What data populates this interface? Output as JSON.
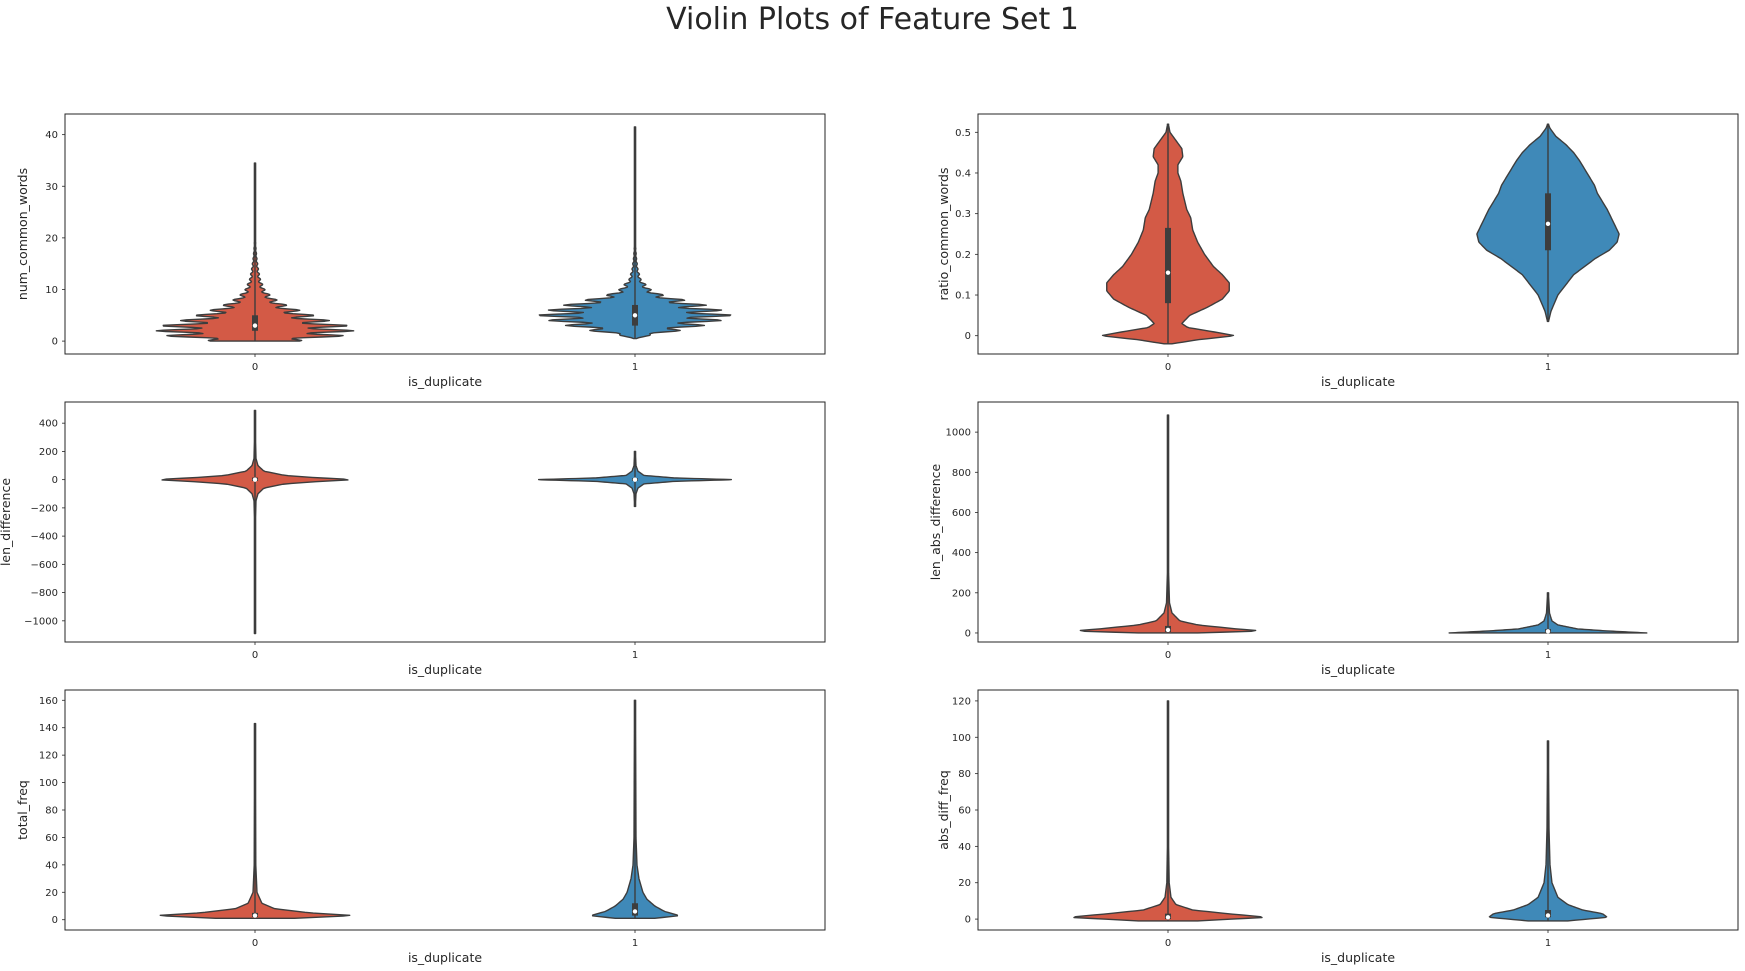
{
  "title": "Violin Plots of Feature Set 1",
  "colors": {
    "class0": "#d35a46",
    "class1": "#3f89b8",
    "edge": "#3d3d3d",
    "frame": "#262626"
  },
  "chart_data": [
    {
      "type": "violin",
      "xlabel": "is_duplicate",
      "ylabel": "num_common_words",
      "categories": [
        "0",
        "1"
      ],
      "ylim": [
        -2.5,
        44
      ],
      "yticks": [
        0,
        10,
        20,
        30,
        40
      ],
      "grid": false,
      "shape": "spiky",
      "series": [
        {
          "category": "0",
          "min": 0,
          "max": 34.5,
          "q1": 2,
          "median": 3,
          "q3": 5,
          "profile": [
            [
              -0.2,
              0.05
            ],
            [
              0,
              0.45
            ],
            [
              1,
              0.9
            ],
            [
              2,
              1.0
            ],
            [
              3,
              0.95
            ],
            [
              4,
              0.75
            ],
            [
              5,
              0.6
            ],
            [
              6,
              0.45
            ],
            [
              7,
              0.32
            ],
            [
              8,
              0.22
            ],
            [
              9,
              0.15
            ],
            [
              10,
              0.1
            ],
            [
              12,
              0.055
            ],
            [
              14,
              0.035
            ],
            [
              16,
              0.02
            ],
            [
              18,
              0.01
            ],
            [
              20,
              0.004
            ],
            [
              34.5,
              0.002
            ]
          ]
        },
        {
          "category": "1",
          "min": 0.5,
          "max": 41.5,
          "q1": 3,
          "median": 5,
          "q3": 7,
          "profile": [
            [
              0.5,
              0.03
            ],
            [
              1,
              0.12
            ],
            [
              2,
              0.45
            ],
            [
              3,
              0.7
            ],
            [
              4,
              0.88
            ],
            [
              5,
              1.0
            ],
            [
              6,
              0.88
            ],
            [
              7,
              0.72
            ],
            [
              8,
              0.5
            ],
            [
              9,
              0.28
            ],
            [
              10,
              0.16
            ],
            [
              12,
              0.06
            ],
            [
              14,
              0.03
            ],
            [
              16,
              0.016
            ],
            [
              18,
              0.008
            ],
            [
              20,
              0.004
            ],
            [
              41.5,
              0.002
            ]
          ]
        }
      ]
    },
    {
      "type": "violin",
      "xlabel": "is_duplicate",
      "ylabel": "ratio_common_words",
      "categories": [
        "0",
        "1"
      ],
      "ylim": [
        -0.045,
        0.545
      ],
      "yticks": [
        0.0,
        0.1,
        0.2,
        0.3,
        0.4,
        0.5
      ],
      "grid": false,
      "shape": "smooth",
      "series": [
        {
          "category": "0",
          "min": -0.02,
          "max": 0.52,
          "q1": 0.08,
          "median": 0.155,
          "q3": 0.265,
          "profile": [
            [
              -0.02,
              0.04
            ],
            [
              -0.01,
              0.3
            ],
            [
              0.0,
              0.68
            ],
            [
              0.01,
              0.45
            ],
            [
              0.02,
              0.2
            ],
            [
              0.03,
              0.14
            ],
            [
              0.05,
              0.22
            ],
            [
              0.07,
              0.4
            ],
            [
              0.09,
              0.55
            ],
            [
              0.11,
              0.62
            ],
            [
              0.13,
              0.62
            ],
            [
              0.15,
              0.55
            ],
            [
              0.17,
              0.46
            ],
            [
              0.2,
              0.37
            ],
            [
              0.23,
              0.3
            ],
            [
              0.26,
              0.25
            ],
            [
              0.29,
              0.23
            ],
            [
              0.31,
              0.19
            ],
            [
              0.33,
              0.17
            ],
            [
              0.35,
              0.15
            ],
            [
              0.38,
              0.13
            ],
            [
              0.4,
              0.1
            ],
            [
              0.42,
              0.1
            ],
            [
              0.44,
              0.15
            ],
            [
              0.46,
              0.14
            ],
            [
              0.48,
              0.08
            ],
            [
              0.5,
              0.02
            ],
            [
              0.52,
              0.004
            ]
          ]
        },
        {
          "category": "1",
          "min": 0.035,
          "max": 0.52,
          "q1": 0.21,
          "median": 0.275,
          "q3": 0.35,
          "profile": [
            [
              0.035,
              0.005
            ],
            [
              0.06,
              0.03
            ],
            [
              0.1,
              0.1
            ],
            [
              0.15,
              0.26
            ],
            [
              0.19,
              0.48
            ],
            [
              0.21,
              0.62
            ],
            [
              0.23,
              0.7
            ],
            [
              0.25,
              0.72
            ],
            [
              0.27,
              0.68
            ],
            [
              0.29,
              0.64
            ],
            [
              0.31,
              0.6
            ],
            [
              0.33,
              0.55
            ],
            [
              0.35,
              0.5
            ],
            [
              0.37,
              0.47
            ],
            [
              0.39,
              0.42
            ],
            [
              0.41,
              0.37
            ],
            [
              0.43,
              0.32
            ],
            [
              0.45,
              0.26
            ],
            [
              0.47,
              0.18
            ],
            [
              0.49,
              0.08
            ],
            [
              0.51,
              0.02
            ],
            [
              0.52,
              0.004
            ]
          ]
        }
      ]
    },
    {
      "type": "violin",
      "xlabel": "is_duplicate",
      "ylabel": "len_difference",
      "categories": [
        "0",
        "1"
      ],
      "ylim": [
        -1150,
        550
      ],
      "yticks": [
        400,
        200,
        0,
        -200,
        -400,
        -600,
        -800,
        -1000
      ],
      "ytick_labels": [
        "400",
        "200",
        "0",
        "−200",
        "−400",
        "−600",
        "−800",
        "−1000"
      ],
      "grid": false,
      "shape": "smooth",
      "series": [
        {
          "category": "0",
          "min": -1090,
          "max": 490,
          "q1": -10,
          "median": 0,
          "q3": 15,
          "profile": [
            [
              -1090,
              0.004
            ],
            [
              -300,
              0.005
            ],
            [
              -150,
              0.01
            ],
            [
              -100,
              0.03
            ],
            [
              -60,
              0.09
            ],
            [
              -30,
              0.3
            ],
            [
              -15,
              0.6
            ],
            [
              0,
              1.0
            ],
            [
              15,
              0.6
            ],
            [
              30,
              0.3
            ],
            [
              60,
              0.09
            ],
            [
              100,
              0.03
            ],
            [
              150,
              0.01
            ],
            [
              300,
              0.005
            ],
            [
              490,
              0.004
            ]
          ]
        },
        {
          "category": "1",
          "min": -190,
          "max": 200,
          "q1": -8,
          "median": 0,
          "q3": 10,
          "profile": [
            [
              -190,
              0.004
            ],
            [
              -100,
              0.01
            ],
            [
              -60,
              0.03
            ],
            [
              -30,
              0.09
            ],
            [
              -12,
              0.4
            ],
            [
              0,
              1.0
            ],
            [
              12,
              0.4
            ],
            [
              30,
              0.09
            ],
            [
              60,
              0.03
            ],
            [
              100,
              0.01
            ],
            [
              200,
              0.004
            ]
          ]
        }
      ]
    },
    {
      "type": "violin",
      "xlabel": "is_duplicate",
      "ylabel": "len_abs_difference",
      "categories": [
        "0",
        "1"
      ],
      "ylim": [
        -45,
        1150
      ],
      "yticks": [
        0,
        200,
        400,
        600,
        800,
        1000
      ],
      "grid": false,
      "shape": "smooth",
      "series": [
        {
          "category": "0",
          "min": 0,
          "max": 1085,
          "q1": 5,
          "median": 15,
          "q3": 35,
          "profile": [
            [
              0,
              0.3
            ],
            [
              10,
              0.95
            ],
            [
              20,
              0.7
            ],
            [
              40,
              0.3
            ],
            [
              60,
              0.12
            ],
            [
              100,
              0.04
            ],
            [
              150,
              0.015
            ],
            [
              300,
              0.006
            ],
            [
              1085,
              0.004
            ]
          ]
        },
        {
          "category": "1",
          "min": 0,
          "max": 200,
          "q1": 3,
          "median": 8,
          "q3": 20,
          "profile": [
            [
              0,
              1.0
            ],
            [
              10,
              0.6
            ],
            [
              20,
              0.3
            ],
            [
              40,
              0.1
            ],
            [
              60,
              0.04
            ],
            [
              100,
              0.015
            ],
            [
              200,
              0.004
            ]
          ]
        }
      ]
    },
    {
      "type": "violin",
      "xlabel": "is_duplicate",
      "ylabel": "total_freq",
      "categories": [
        "0",
        "1"
      ],
      "ylim": [
        -7.5,
        167.5
      ],
      "yticks": [
        0,
        20,
        40,
        60,
        80,
        100,
        120,
        140,
        160
      ],
      "grid": false,
      "shape": "smooth",
      "series": [
        {
          "category": "0",
          "min": 1,
          "max": 143,
          "q1": 2,
          "median": 3,
          "q3": 5,
          "profile": [
            [
              1,
              0.4
            ],
            [
              3,
              1.0
            ],
            [
              5,
              0.55
            ],
            [
              8,
              0.2
            ],
            [
              12,
              0.07
            ],
            [
              20,
              0.02
            ],
            [
              40,
              0.008
            ],
            [
              143,
              0.004
            ]
          ]
        },
        {
          "category": "1",
          "min": 1,
          "max": 160,
          "q1": 3,
          "median": 6,
          "q3": 12,
          "profile": [
            [
              1,
              0.2
            ],
            [
              3,
              0.45
            ],
            [
              6,
              0.3
            ],
            [
              10,
              0.2
            ],
            [
              15,
              0.12
            ],
            [
              20,
              0.08
            ],
            [
              30,
              0.04
            ],
            [
              40,
              0.02
            ],
            [
              60,
              0.01
            ],
            [
              160,
              0.005
            ]
          ]
        }
      ]
    },
    {
      "type": "violin",
      "xlabel": "is_duplicate",
      "ylabel": "abs_diff_freq",
      "categories": [
        "0",
        "1"
      ],
      "ylim": [
        -6,
        126
      ],
      "yticks": [
        0,
        20,
        40,
        60,
        80,
        100,
        120
      ],
      "grid": false,
      "shape": "smooth",
      "series": [
        {
          "category": "0",
          "min": -1,
          "max": 120,
          "q1": 0,
          "median": 1,
          "q3": 3,
          "profile": [
            [
              -1,
              0.3
            ],
            [
              1,
              1.0
            ],
            [
              3,
              0.6
            ],
            [
              5,
              0.25
            ],
            [
              8,
              0.08
            ],
            [
              12,
              0.03
            ],
            [
              20,
              0.012
            ],
            [
              40,
              0.006
            ],
            [
              120,
              0.004
            ]
          ]
        },
        {
          "category": "1",
          "min": -1,
          "max": 98,
          "q1": 1,
          "median": 2,
          "q3": 5,
          "profile": [
            [
              -1,
              0.2
            ],
            [
              1,
              0.6
            ],
            [
              3,
              0.55
            ],
            [
              5,
              0.35
            ],
            [
              8,
              0.2
            ],
            [
              12,
              0.1
            ],
            [
              20,
              0.04
            ],
            [
              30,
              0.02
            ],
            [
              50,
              0.01
            ],
            [
              98,
              0.004
            ]
          ]
        }
      ]
    }
  ]
}
